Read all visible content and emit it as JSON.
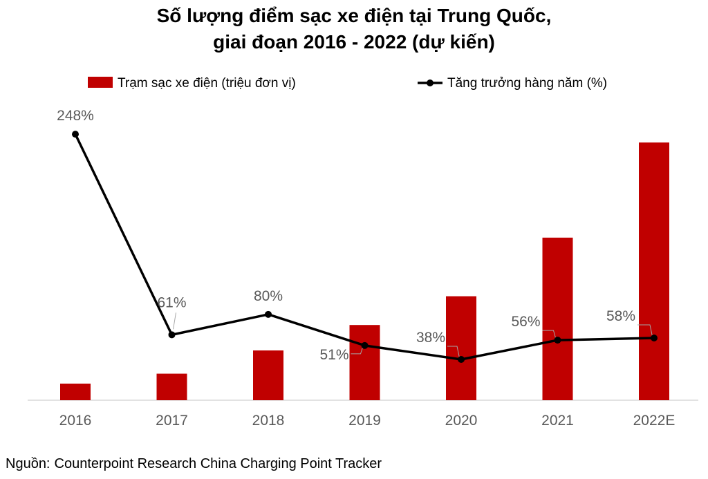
{
  "title_line1": "Số lượng điểm sạc xe điện tại Trung Quốc,",
  "title_line2": "giai đoạn 2016 - 2022 (dự kiến)",
  "source_label": "Nguồn:",
  "source_text": "Counterpoint Research China Charging Point Tracker",
  "colors": {
    "bar": "#C00000",
    "line": "#000000",
    "label": "#595959"
  },
  "chart_data": {
    "type": "bar+line",
    "categories": [
      "2016",
      "2017",
      "2018",
      "2019",
      "2020",
      "2021",
      "2022E"
    ],
    "series": [
      {
        "name": "Trạm sạc xe điện (triệu đơn vị)",
        "type": "bar",
        "axis": "left",
        "values": [
          0.15,
          0.24,
          0.45,
          0.68,
          0.94,
          1.47,
          2.33
        ]
      },
      {
        "name": "Tăng trưởng hàng năm (%)",
        "type": "line",
        "axis": "right",
        "values": [
          248,
          61,
          80,
          51,
          38,
          56,
          58
        ],
        "labels": [
          "248%",
          "61%",
          "80%",
          "51%",
          "38%",
          "56%",
          "58%"
        ]
      }
    ],
    "bar_ylim": [
      0,
      2.5
    ],
    "line_ylim": [
      0,
      250
    ],
    "legend_position": "top",
    "grid": false
  }
}
